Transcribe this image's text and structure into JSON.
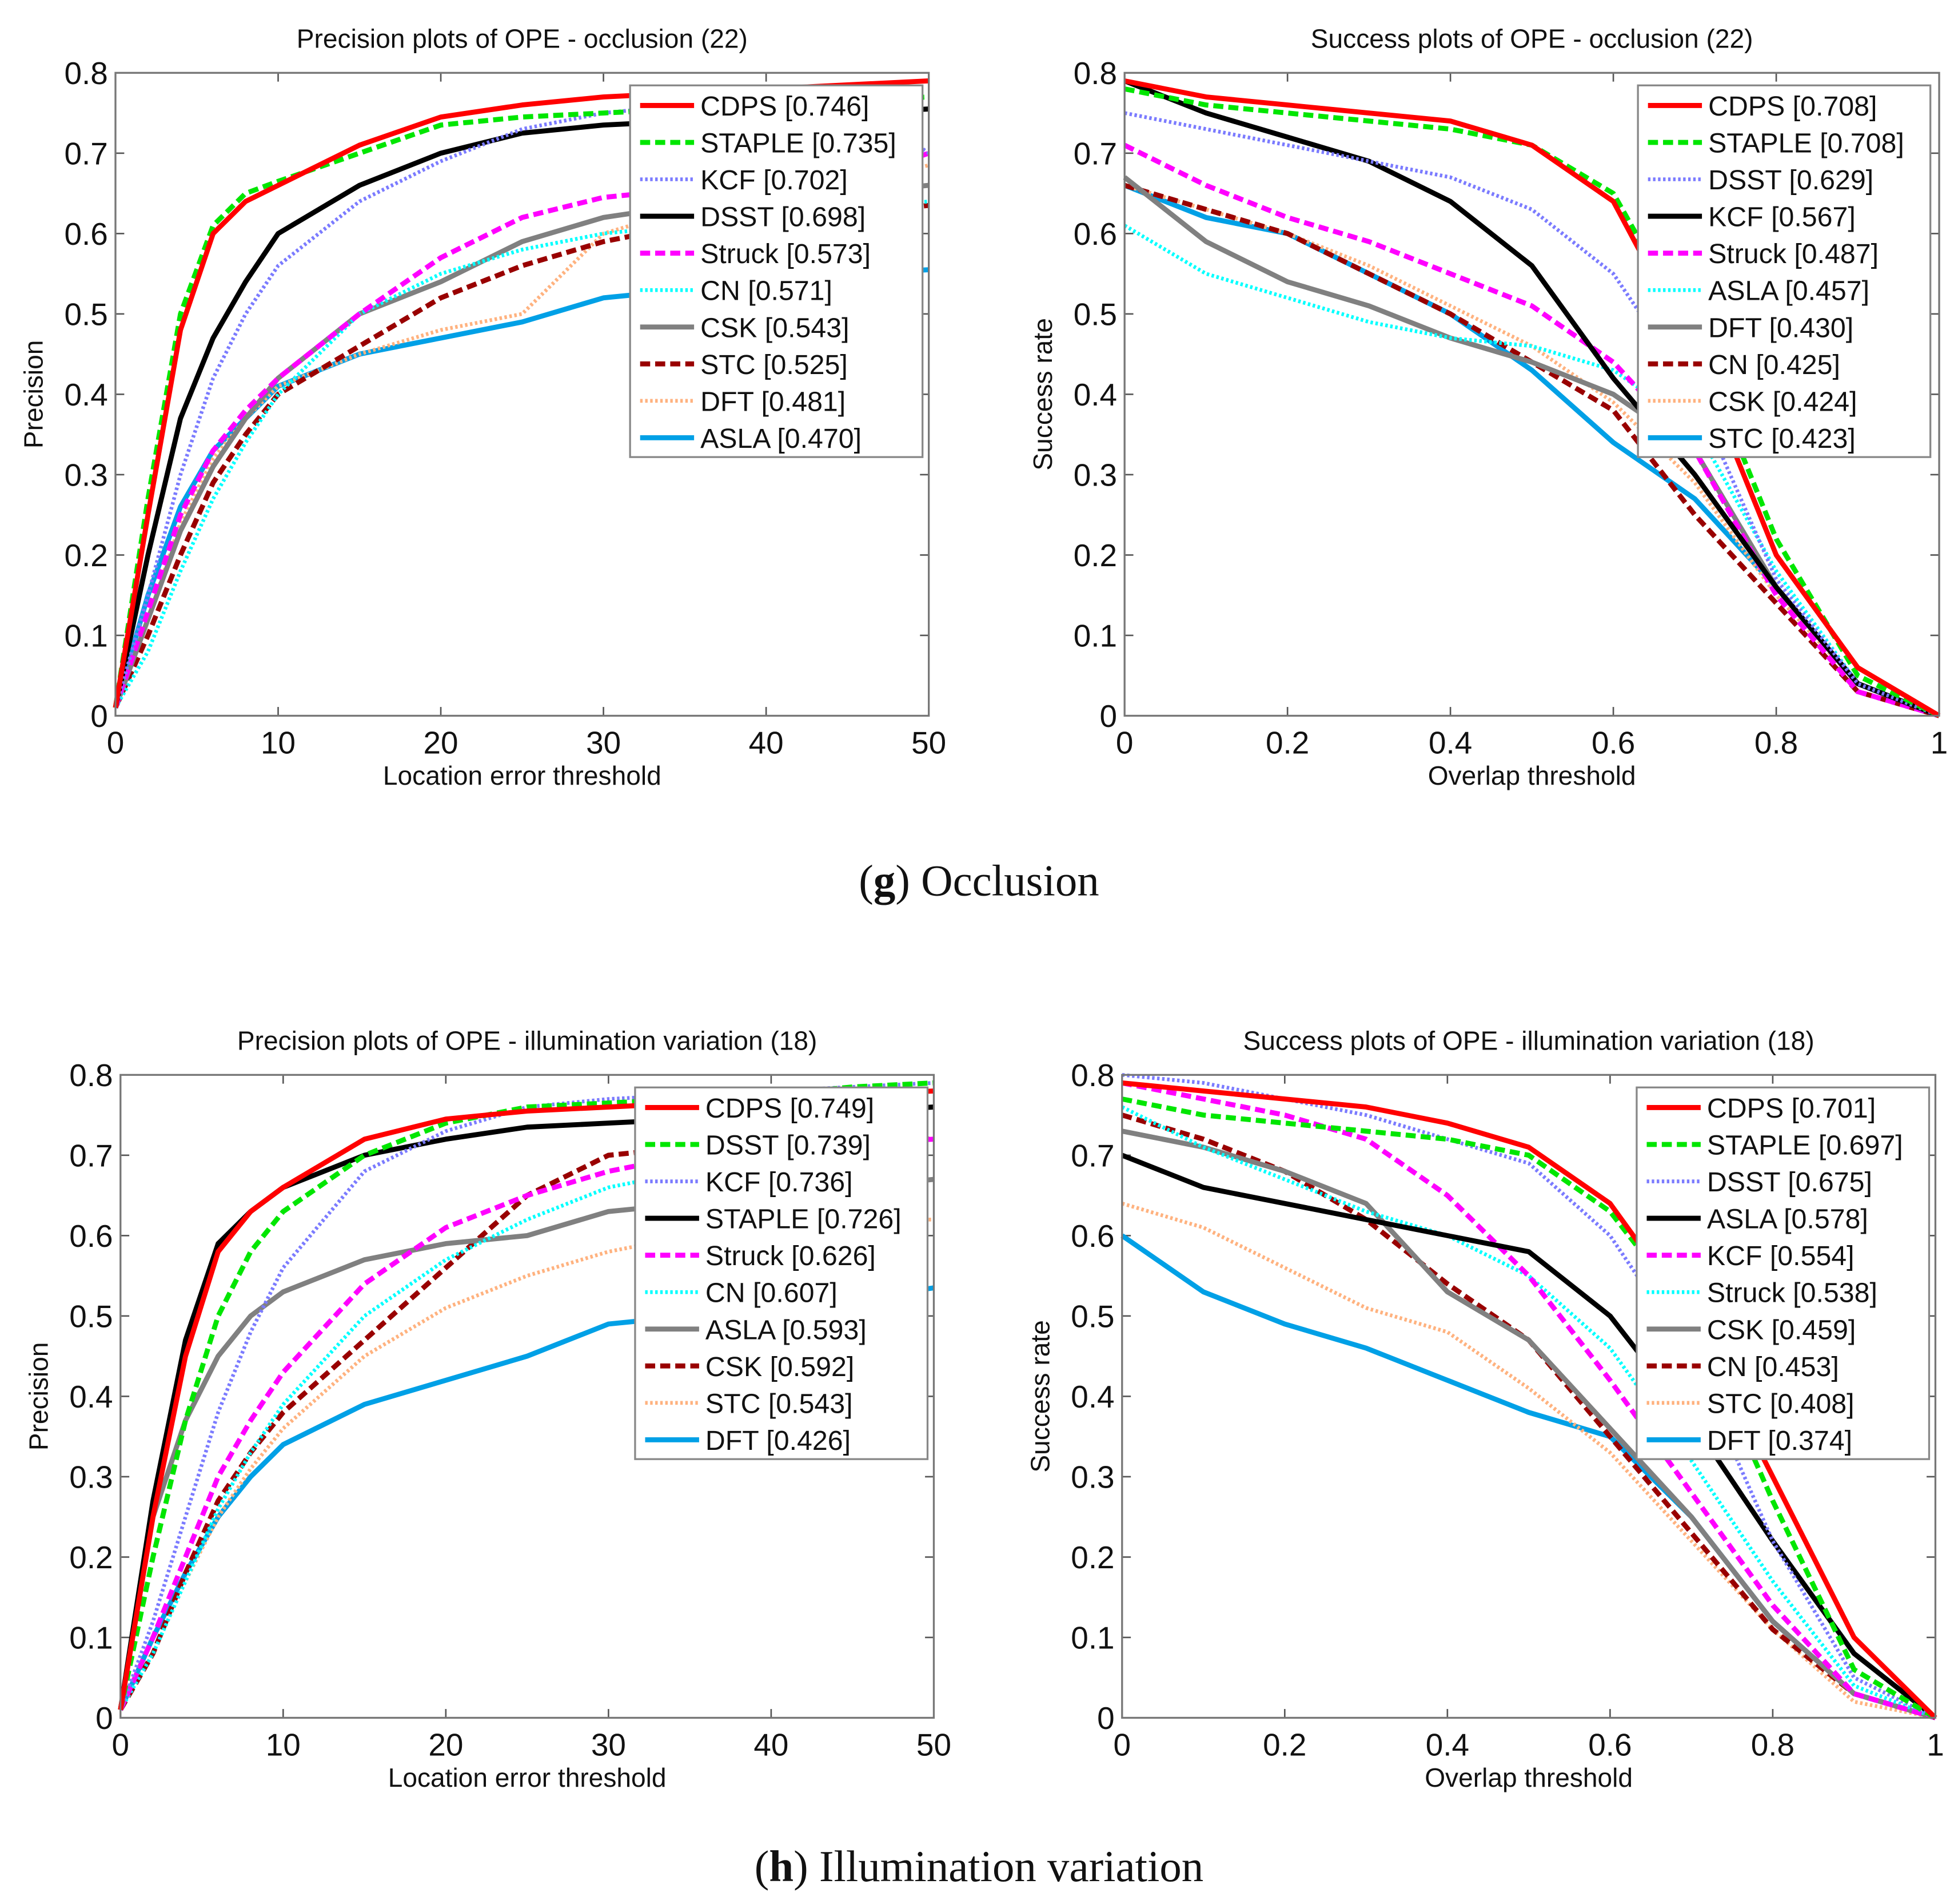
{
  "series_styles": [
    {
      "color": "#ff0000",
      "dash": "solid"
    },
    {
      "color": "#00e600",
      "dash": "dashed"
    },
    {
      "color": "#7b7bff",
      "dash": "dotted"
    },
    {
      "color": "#000000",
      "dash": "solid"
    },
    {
      "color": "#ff00ff",
      "dash": "dashed"
    },
    {
      "color": "#00ffff",
      "dash": "dotted"
    },
    {
      "color": "#808080",
      "dash": "solid"
    },
    {
      "color": "#990000",
      "dash": "dashed"
    },
    {
      "color": "#ffb27f",
      "dash": "dotted"
    },
    {
      "color": "#00a0e6",
      "dash": "solid"
    }
  ],
  "captions": [
    {
      "letter": "g",
      "text": " Occlusion"
    },
    {
      "letter": "h",
      "text": " Illumination variation"
    }
  ],
  "chart_data": [
    {
      "type": "line",
      "title": "Precision plots of OPE - occlusion (22)",
      "xlabel": "Location error threshold",
      "ylabel": "Precision",
      "xlim": [
        0,
        50
      ],
      "ylim": [
        0,
        0.8
      ],
      "xticks": [
        "0",
        "10",
        "20",
        "30",
        "40",
        "50"
      ],
      "yticks": [
        "0",
        "0.1",
        "0.2",
        "0.3",
        "0.4",
        "0.5",
        "0.6",
        "0.7",
        "0.8"
      ],
      "legend_position": "top-right",
      "x": [
        0,
        2,
        4,
        6,
        8,
        10,
        15,
        20,
        25,
        30,
        35,
        40,
        45,
        50
      ],
      "series": [
        {
          "name": "CDPS [0.746]",
          "values": [
            0.01,
            0.25,
            0.48,
            0.6,
            0.64,
            0.66,
            0.71,
            0.745,
            0.76,
            0.77,
            0.775,
            0.78,
            0.785,
            0.79
          ]
        },
        {
          "name": "STAPLE [0.735]",
          "values": [
            0.01,
            0.27,
            0.5,
            0.61,
            0.65,
            0.665,
            0.7,
            0.735,
            0.745,
            0.75,
            0.755,
            0.76,
            0.765,
            0.77
          ]
        },
        {
          "name": "KCF [0.702]",
          "values": [
            0.01,
            0.15,
            0.3,
            0.42,
            0.5,
            0.56,
            0.64,
            0.69,
            0.73,
            0.75,
            0.76,
            0.765,
            0.77,
            0.7
          ]
        },
        {
          "name": "DSST [0.698]",
          "values": [
            0.01,
            0.2,
            0.37,
            0.47,
            0.54,
            0.6,
            0.66,
            0.7,
            0.725,
            0.735,
            0.74,
            0.745,
            0.75,
            0.755
          ]
        },
        {
          "name": "Struck [0.573]",
          "values": [
            0.01,
            0.13,
            0.25,
            0.33,
            0.38,
            0.42,
            0.5,
            0.57,
            0.62,
            0.645,
            0.655,
            0.66,
            0.665,
            0.7
          ]
        },
        {
          "name": "CN [0.571]",
          "values": [
            0.01,
            0.08,
            0.18,
            0.27,
            0.34,
            0.4,
            0.5,
            0.55,
            0.58,
            0.6,
            0.61,
            0.62,
            0.63,
            0.64
          ]
        },
        {
          "name": "CSK [0.543]",
          "values": [
            0.01,
            0.12,
            0.23,
            0.31,
            0.37,
            0.42,
            0.5,
            0.54,
            0.59,
            0.62,
            0.635,
            0.645,
            0.65,
            0.66
          ]
        },
        {
          "name": "STC [0.525]",
          "values": [
            0.01,
            0.1,
            0.2,
            0.29,
            0.35,
            0.4,
            0.46,
            0.52,
            0.56,
            0.59,
            0.61,
            0.62,
            0.625,
            0.635
          ]
        },
        {
          "name": "DFT [0.481]",
          "values": [
            0.01,
            0.12,
            0.24,
            0.32,
            0.37,
            0.41,
            0.45,
            0.48,
            0.5,
            0.6,
            0.63,
            0.65,
            0.66,
            0.685
          ]
        },
        {
          "name": "ASLA [0.470]",
          "values": [
            0.01,
            0.15,
            0.26,
            0.33,
            0.37,
            0.41,
            0.45,
            0.47,
            0.49,
            0.52,
            0.53,
            0.54,
            0.55,
            0.555
          ]
        }
      ]
    },
    {
      "type": "line",
      "title": "Success plots of OPE - occlusion (22)",
      "xlabel": "Overlap threshold",
      "ylabel": "Success rate",
      "xlim": [
        0,
        1
      ],
      "ylim": [
        0,
        0.8
      ],
      "xticks": [
        "0",
        "0.2",
        "0.4",
        "0.6",
        "0.8",
        "1"
      ],
      "yticks": [
        "0",
        "0.1",
        "0.2",
        "0.3",
        "0.4",
        "0.5",
        "0.6",
        "0.7",
        "0.8"
      ],
      "legend_position": "top-right",
      "x": [
        0,
        0.1,
        0.2,
        0.3,
        0.4,
        0.5,
        0.6,
        0.7,
        0.8,
        0.9,
        1.0
      ],
      "series": [
        {
          "name": "CDPS [0.708]",
          "values": [
            0.79,
            0.77,
            0.76,
            0.75,
            0.74,
            0.71,
            0.64,
            0.45,
            0.2,
            0.06,
            0
          ]
        },
        {
          "name": "STAPLE [0.708]",
          "values": [
            0.78,
            0.76,
            0.75,
            0.74,
            0.73,
            0.71,
            0.65,
            0.47,
            0.22,
            0.05,
            0
          ]
        },
        {
          "name": "DSST [0.629]",
          "values": [
            0.75,
            0.73,
            0.71,
            0.69,
            0.67,
            0.63,
            0.55,
            0.4,
            0.17,
            0.04,
            0
          ]
        },
        {
          "name": "KCF [0.567]",
          "values": [
            0.79,
            0.75,
            0.72,
            0.69,
            0.64,
            0.56,
            0.42,
            0.3,
            0.16,
            0.04,
            0
          ]
        },
        {
          "name": "Struck [0.487]",
          "values": [
            0.71,
            0.66,
            0.62,
            0.59,
            0.55,
            0.51,
            0.44,
            0.33,
            0.15,
            0.03,
            0
          ]
        },
        {
          "name": "ASLA [0.457]",
          "values": [
            0.61,
            0.55,
            0.52,
            0.49,
            0.47,
            0.46,
            0.43,
            0.36,
            0.18,
            0.04,
            0
          ]
        },
        {
          "name": "DFT [0.430]",
          "values": [
            0.67,
            0.59,
            0.54,
            0.51,
            0.47,
            0.44,
            0.4,
            0.33,
            0.16,
            0.04,
            0
          ]
        },
        {
          "name": "CN [0.425]",
          "values": [
            0.66,
            0.63,
            0.6,
            0.55,
            0.5,
            0.44,
            0.38,
            0.25,
            0.14,
            0.03,
            0
          ]
        },
        {
          "name": "CSK [0.424]",
          "values": [
            0.66,
            0.63,
            0.6,
            0.56,
            0.51,
            0.46,
            0.39,
            0.29,
            0.15,
            0.04,
            0
          ]
        },
        {
          "name": "STC [0.423]",
          "values": [
            0.66,
            0.62,
            0.6,
            0.55,
            0.5,
            0.43,
            0.34,
            0.27,
            0.16,
            0.04,
            0
          ]
        }
      ]
    },
    {
      "type": "line",
      "title": "Precision plots of OPE - illumination variation (18)",
      "xlabel": "Location error threshold",
      "ylabel": "Precision",
      "xlim": [
        0,
        50
      ],
      "ylim": [
        0,
        0.8
      ],
      "xticks": [
        "0",
        "10",
        "20",
        "30",
        "40",
        "50"
      ],
      "yticks": [
        "0",
        "0.1",
        "0.2",
        "0.3",
        "0.4",
        "0.5",
        "0.6",
        "0.7",
        "0.8"
      ],
      "legend_position": "top-right",
      "x": [
        0,
        2,
        4,
        6,
        8,
        10,
        15,
        20,
        25,
        30,
        35,
        40,
        45,
        50
      ],
      "series": [
        {
          "name": "CDPS [0.749]",
          "values": [
            0.01,
            0.25,
            0.45,
            0.58,
            0.63,
            0.66,
            0.72,
            0.745,
            0.755,
            0.76,
            0.765,
            0.77,
            0.775,
            0.78
          ]
        },
        {
          "name": "DSST [0.739]",
          "values": [
            0.01,
            0.2,
            0.37,
            0.5,
            0.58,
            0.63,
            0.7,
            0.74,
            0.76,
            0.765,
            0.77,
            0.775,
            0.785,
            0.79
          ]
        },
        {
          "name": "KCF [0.736]",
          "values": [
            0.01,
            0.12,
            0.25,
            0.38,
            0.48,
            0.56,
            0.68,
            0.73,
            0.76,
            0.77,
            0.775,
            0.78,
            0.785,
            0.79
          ]
        },
        {
          "name": "STAPLE [0.726]",
          "values": [
            0.01,
            0.27,
            0.47,
            0.59,
            0.63,
            0.66,
            0.7,
            0.72,
            0.735,
            0.74,
            0.745,
            0.75,
            0.755,
            0.76
          ]
        },
        {
          "name": "Struck [0.626]",
          "values": [
            0.01,
            0.1,
            0.2,
            0.3,
            0.37,
            0.43,
            0.54,
            0.61,
            0.65,
            0.68,
            0.7,
            0.71,
            0.715,
            0.72
          ]
        },
        {
          "name": "CN [0.607]",
          "values": [
            0.01,
            0.08,
            0.17,
            0.26,
            0.33,
            0.39,
            0.5,
            0.57,
            0.62,
            0.66,
            0.68,
            0.7,
            0.71,
            0.72
          ]
        },
        {
          "name": "ASLA [0.593]",
          "values": [
            0.01,
            0.25,
            0.37,
            0.45,
            0.5,
            0.53,
            0.57,
            0.59,
            0.6,
            0.63,
            0.64,
            0.65,
            0.66,
            0.67
          ]
        },
        {
          "name": "CSK [0.592]",
          "values": [
            0.01,
            0.08,
            0.18,
            0.27,
            0.33,
            0.38,
            0.47,
            0.56,
            0.65,
            0.7,
            0.71,
            0.72,
            0.72,
            0.72
          ]
        },
        {
          "name": "STC [0.543]",
          "values": [
            0.01,
            0.08,
            0.17,
            0.25,
            0.31,
            0.36,
            0.45,
            0.51,
            0.55,
            0.58,
            0.6,
            0.61,
            0.62,
            0.62
          ]
        },
        {
          "name": "DFT [0.426]",
          "values": [
            0.01,
            0.1,
            0.18,
            0.25,
            0.3,
            0.34,
            0.39,
            0.42,
            0.45,
            0.49,
            0.5,
            0.51,
            0.52,
            0.535
          ]
        }
      ]
    },
    {
      "type": "line",
      "title": "Success plots of OPE - illumination variation (18)",
      "xlabel": "Overlap threshold",
      "ylabel": "Success rate",
      "xlim": [
        0,
        1
      ],
      "ylim": [
        0,
        0.8
      ],
      "xticks": [
        "0",
        "0.2",
        "0.4",
        "0.6",
        "0.8",
        "1"
      ],
      "yticks": [
        "0",
        "0.1",
        "0.2",
        "0.3",
        "0.4",
        "0.5",
        "0.6",
        "0.7",
        "0.8"
      ],
      "legend_position": "top-right",
      "x": [
        0,
        0.1,
        0.2,
        0.3,
        0.4,
        0.5,
        0.6,
        0.7,
        0.8,
        0.9,
        1.0
      ],
      "series": [
        {
          "name": "CDPS [0.701]",
          "values": [
            0.79,
            0.78,
            0.77,
            0.76,
            0.74,
            0.71,
            0.64,
            0.5,
            0.3,
            0.1,
            0
          ]
        },
        {
          "name": "STAPLE [0.697]",
          "values": [
            0.77,
            0.75,
            0.74,
            0.73,
            0.72,
            0.7,
            0.63,
            0.5,
            0.27,
            0.06,
            0
          ]
        },
        {
          "name": "DSST [0.675]",
          "values": [
            0.8,
            0.79,
            0.77,
            0.75,
            0.72,
            0.69,
            0.6,
            0.45,
            0.22,
            0.05,
            0
          ]
        },
        {
          "name": "ASLA [0.578]",
          "values": [
            0.7,
            0.66,
            0.64,
            0.62,
            0.6,
            0.58,
            0.5,
            0.37,
            0.22,
            0.08,
            0
          ]
        },
        {
          "name": "KCF [0.554]",
          "values": [
            0.79,
            0.77,
            0.75,
            0.72,
            0.65,
            0.55,
            0.42,
            0.28,
            0.14,
            0.03,
            0
          ]
        },
        {
          "name": "Struck [0.538]",
          "values": [
            0.76,
            0.71,
            0.67,
            0.63,
            0.6,
            0.55,
            0.46,
            0.32,
            0.17,
            0.04,
            0
          ]
        },
        {
          "name": "CSK [0.459]",
          "values": [
            0.73,
            0.71,
            0.68,
            0.64,
            0.53,
            0.47,
            0.36,
            0.25,
            0.12,
            0.03,
            0
          ]
        },
        {
          "name": "CN [0.453]",
          "values": [
            0.75,
            0.72,
            0.68,
            0.62,
            0.54,
            0.47,
            0.35,
            0.23,
            0.11,
            0.03,
            0
          ]
        },
        {
          "name": "STC [0.408]",
          "values": [
            0.64,
            0.61,
            0.56,
            0.51,
            0.48,
            0.41,
            0.33,
            0.22,
            0.11,
            0.02,
            0
          ]
        },
        {
          "name": "DFT [0.374]",
          "values": [
            0.6,
            0.53,
            0.49,
            0.46,
            0.42,
            0.38,
            0.35,
            0.25,
            0.12,
            0.03,
            0
          ]
        }
      ]
    }
  ]
}
